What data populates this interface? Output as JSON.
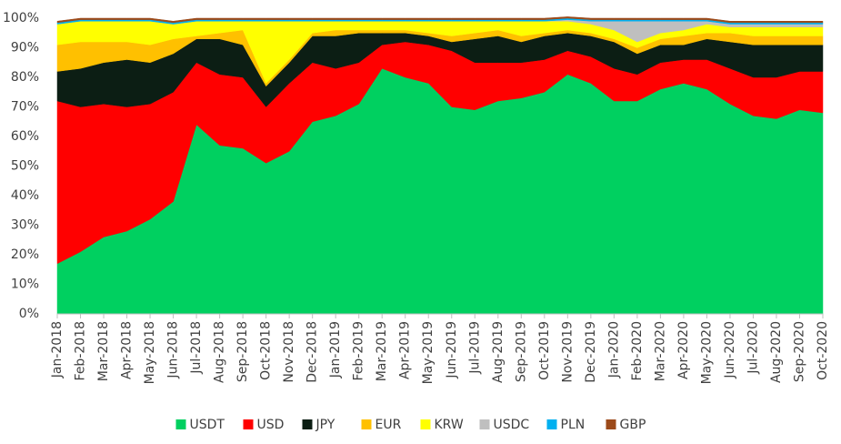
{
  "chart_data": {
    "type": "stacked_area",
    "categories": [
      "Jan-2018",
      "Feb-2018",
      "Mar-2018",
      "Apr-2018",
      "May-2018",
      "Jun-2018",
      "Jul-2018",
      "Aug-2018",
      "Sep-2018",
      "Oct-2018",
      "Nov-2018",
      "Dec-2018",
      "Jan-2019",
      "Feb-2019",
      "Mar-2019",
      "Apr-2019",
      "May-2019",
      "Jun-2019",
      "Jul-2019",
      "Aug-2019",
      "Sep-2019",
      "Oct-2019",
      "Nov-2019",
      "Dec-2019",
      "Jan-2020",
      "Feb-2020",
      "Mar-2020",
      "Apr-2020",
      "May-2020",
      "Jun-2020",
      "Jul-2020",
      "Aug-2020",
      "Sep-2020",
      "Oct-2020"
    ],
    "series": [
      {
        "name": "USDT",
        "color": "#00d060",
        "values": [
          17,
          21,
          26,
          28,
          32,
          38,
          64,
          57,
          56,
          51,
          55,
          65,
          67,
          71,
          83,
          80,
          78,
          70,
          69,
          72,
          73,
          75,
          81,
          78,
          72,
          72,
          76,
          78,
          76,
          71,
          67,
          66,
          69,
          68
        ]
      },
      {
        "name": "USD",
        "color": "#ff0000",
        "values": [
          55,
          49,
          45,
          42,
          39,
          37,
          21,
          24,
          24,
          19,
          23,
          20,
          16,
          14,
          8,
          12,
          13,
          19,
          16,
          13,
          12,
          11,
          8,
          9,
          11,
          9,
          9,
          8,
          10,
          12,
          13,
          14,
          13,
          14
        ]
      },
      {
        "name": "JPY",
        "color": "#0c1e14",
        "values": [
          10,
          13,
          14,
          16,
          14,
          13,
          8,
          12,
          11,
          7,
          7,
          9,
          11,
          10,
          4,
          3,
          3,
          3,
          8,
          9,
          7,
          8,
          6,
          7,
          9,
          7,
          6,
          5,
          7,
          9,
          11,
          11,
          9,
          9
        ]
      },
      {
        "name": "EUR",
        "color": "#ffc000",
        "values": [
          9,
          9,
          7,
          6,
          6,
          5,
          1,
          2,
          5,
          1,
          1,
          1,
          2,
          1,
          1,
          1,
          1,
          2,
          2,
          2,
          2,
          1,
          1,
          1,
          1,
          2,
          2,
          3,
          2,
          3,
          3,
          3,
          3,
          3
        ]
      },
      {
        "name": "KRW",
        "color": "#ffff00",
        "values": [
          7,
          7,
          7,
          7,
          8,
          5,
          5,
          4,
          3,
          21,
          13,
          4,
          3,
          3,
          3,
          3,
          4,
          5,
          4,
          3,
          5,
          4,
          3,
          3,
          3,
          2,
          2,
          2,
          3,
          2,
          3,
          3,
          3,
          3
        ]
      },
      {
        "name": "USDC",
        "color": "#bfbfbf",
        "values": [
          0,
          0,
          0,
          0,
          0,
          0,
          0,
          0,
          0,
          0,
          0,
          0,
          0,
          0,
          0,
          0,
          0,
          0,
          0,
          0,
          0,
          0,
          0.5,
          1,
          3,
          7,
          4,
          3,
          1,
          1,
          1,
          1,
          1,
          1
        ]
      },
      {
        "name": "PLN",
        "color": "#00b0f0",
        "values": [
          0.5,
          0.5,
          0.5,
          0.5,
          0.5,
          0.5,
          0.5,
          0.5,
          0.5,
          0.5,
          0.5,
          0.5,
          0.5,
          0.5,
          0.5,
          0.5,
          0.5,
          0.5,
          0.5,
          0.5,
          0.5,
          0.5,
          0.5,
          0.5,
          0.5,
          0.5,
          0.5,
          0.5,
          0.5,
          0.5,
          0.5,
          0.5,
          0.5,
          0.5
        ]
      },
      {
        "name": "GBP",
        "color": "#9c4a1a",
        "values": [
          0.5,
          0.5,
          0.5,
          0.5,
          0.5,
          0.5,
          0.5,
          0.5,
          0.5,
          0.5,
          0.5,
          0.5,
          0.5,
          0.5,
          0.5,
          0.5,
          0.5,
          0.5,
          0.5,
          0.5,
          0.5,
          0.5,
          0.5,
          0.5,
          0.5,
          0.5,
          0.5,
          0.5,
          0.5,
          0.5,
          0.5,
          0.5,
          0.5,
          0.5
        ]
      }
    ],
    "ylim": [
      0,
      100
    ],
    "yticks": [
      {
        "value": 0,
        "label": "0%"
      },
      {
        "value": 10,
        "label": "10%"
      },
      {
        "value": 20,
        "label": "20%"
      },
      {
        "value": 30,
        "label": "30%"
      },
      {
        "value": 40,
        "label": "40%"
      },
      {
        "value": 50,
        "label": "50%"
      },
      {
        "value": 60,
        "label": "60%"
      },
      {
        "value": 70,
        "label": "70%"
      },
      {
        "value": 80,
        "label": "80%"
      },
      {
        "value": 90,
        "label": "90%"
      },
      {
        "value": 100,
        "label": "100%"
      }
    ],
    "grid": false,
    "legend": "bottom"
  }
}
